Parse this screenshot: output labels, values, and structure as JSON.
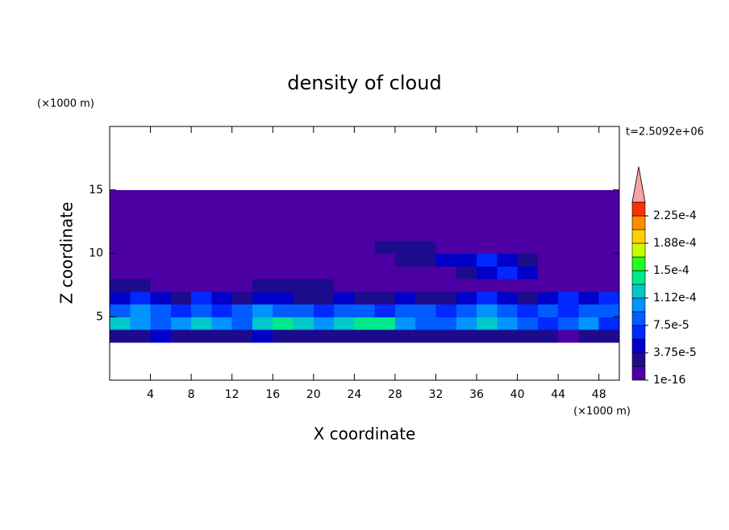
{
  "chart_data": {
    "type": "contour",
    "title": "density of cloud",
    "annotation": "t=2.5092e+06",
    "x_label": "X coordinate",
    "y_label": "Z coordinate",
    "x_unit": "(×1000 m)",
    "y_unit": "(×1000 m)",
    "xlim": [
      0,
      50
    ],
    "ylim": [
      0,
      20
    ],
    "xticks": [
      4,
      8,
      12,
      16,
      20,
      24,
      28,
      32,
      36,
      40,
      44,
      48
    ],
    "yticks": [
      5,
      10,
      15
    ],
    "field": {
      "x": [
        1,
        3,
        5,
        7,
        9,
        11,
        13,
        15,
        17,
        19,
        21,
        23,
        25,
        27,
        29,
        31,
        33,
        35,
        37,
        39,
        41,
        43,
        45,
        47,
        49
      ],
      "z": [
        3.5,
        4.5,
        5.5,
        6.5,
        7.5,
        8.5,
        9.5,
        10.5,
        11.5,
        12.5,
        13.5,
        14.5
      ],
      "values": [
        [
          2.5e-05,
          2.5e-05,
          4.5e-05,
          2.5e-05,
          2.5e-05,
          2.5e-05,
          2.5e-05,
          4.5e-05,
          2.5e-05,
          2.5e-05,
          2.5e-05,
          2.5e-05,
          2.5e-05,
          2.5e-05,
          2.5e-05,
          2.5e-05,
          2.5e-05,
          2.5e-05,
          2.5e-05,
          2.5e-05,
          2.5e-05,
          2.5e-05,
          5e-06,
          2.5e-05,
          2.5e-05
        ],
        [
          0.00012,
          0.0001,
          8e-05,
          0.0001,
          0.00012,
          0.0001,
          8e-05,
          0.00012,
          0.00014,
          0.00012,
          0.0001,
          0.00012,
          0.00014,
          0.00014,
          0.0001,
          8e-05,
          8e-05,
          0.0001,
          0.00012,
          0.0001,
          8e-05,
          6e-05,
          8e-05,
          0.0001,
          6e-05
        ],
        [
          8e-05,
          0.0001,
          8e-05,
          6e-05,
          8e-05,
          6e-05,
          8e-05,
          0.0001,
          8e-05,
          8e-05,
          6e-05,
          8e-05,
          8e-05,
          6e-05,
          8e-05,
          8e-05,
          6e-05,
          8e-05,
          0.0001,
          8e-05,
          6e-05,
          8e-05,
          6e-05,
          8e-05,
          8e-05
        ],
        [
          4.5e-05,
          6e-05,
          4.5e-05,
          2.5e-05,
          6e-05,
          4.5e-05,
          2.5e-05,
          4.5e-05,
          4.5e-05,
          2.5e-05,
          2.5e-05,
          4.5e-05,
          2.5e-05,
          2.5e-05,
          4.5e-05,
          2.5e-05,
          2.5e-05,
          4.5e-05,
          6e-05,
          4.5e-05,
          2.5e-05,
          4.5e-05,
          6e-05,
          4.5e-05,
          6e-05
        ],
        [
          2.5e-05,
          2.5e-05,
          5e-06,
          5e-06,
          5e-06,
          5e-06,
          5e-06,
          2.5e-05,
          2.5e-05,
          2.5e-05,
          2.5e-05,
          5e-06,
          5e-06,
          5e-06,
          5e-06,
          5e-06,
          5e-06,
          5e-06,
          5e-06,
          5e-06,
          5e-06,
          5e-06,
          5e-06,
          5e-06,
          5e-06
        ],
        [
          5e-06,
          5e-06,
          5e-06,
          5e-06,
          5e-06,
          5e-06,
          5e-06,
          5e-06,
          5e-06,
          5e-06,
          5e-06,
          5e-06,
          5e-06,
          5e-06,
          5e-06,
          5e-06,
          5e-06,
          2.5e-05,
          4.5e-05,
          6e-05,
          4.5e-05,
          5e-06,
          5e-06,
          5e-06,
          5e-06
        ],
        [
          5e-06,
          5e-06,
          5e-06,
          5e-06,
          5e-06,
          5e-06,
          5e-06,
          5e-06,
          5e-06,
          5e-06,
          5e-06,
          5e-06,
          5e-06,
          5e-06,
          2.5e-05,
          2.5e-05,
          4.5e-05,
          4.5e-05,
          6e-05,
          4.5e-05,
          2.5e-05,
          5e-06,
          5e-06,
          5e-06,
          5e-06
        ],
        [
          5e-06,
          5e-06,
          5e-06,
          5e-06,
          5e-06,
          5e-06,
          5e-06,
          5e-06,
          5e-06,
          5e-06,
          5e-06,
          5e-06,
          5e-06,
          2.5e-05,
          2.5e-05,
          2.5e-05,
          5e-06,
          5e-06,
          5e-06,
          5e-06,
          5e-06,
          5e-06,
          5e-06,
          5e-06,
          5e-06
        ],
        [
          5e-06,
          5e-06,
          5e-06,
          5e-06,
          5e-06,
          5e-06,
          5e-06,
          5e-06,
          5e-06,
          5e-06,
          5e-06,
          5e-06,
          5e-06,
          5e-06,
          5e-06,
          5e-06,
          5e-06,
          5e-06,
          5e-06,
          5e-06,
          5e-06,
          5e-06,
          5e-06,
          5e-06,
          5e-06
        ],
        [
          5e-06,
          5e-06,
          5e-06,
          5e-06,
          5e-06,
          5e-06,
          5e-06,
          5e-06,
          5e-06,
          5e-06,
          5e-06,
          5e-06,
          5e-06,
          5e-06,
          5e-06,
          5e-06,
          5e-06,
          5e-06,
          5e-06,
          5e-06,
          5e-06,
          5e-06,
          5e-06,
          5e-06,
          5e-06
        ],
        [
          5e-06,
          5e-06,
          5e-06,
          5e-06,
          5e-06,
          5e-06,
          5e-06,
          5e-06,
          5e-06,
          5e-06,
          5e-06,
          5e-06,
          5e-06,
          5e-06,
          5e-06,
          5e-06,
          5e-06,
          5e-06,
          5e-06,
          5e-06,
          5e-06,
          5e-06,
          5e-06,
          5e-06,
          5e-06
        ],
        [
          5e-06,
          5e-06,
          5e-06,
          5e-06,
          5e-06,
          5e-06,
          5e-06,
          5e-06,
          5e-06,
          5e-06,
          5e-06,
          5e-06,
          5e-06,
          5e-06,
          5e-06,
          5e-06,
          5e-06,
          5e-06,
          5e-06,
          5e-06,
          5e-06,
          5e-06,
          5e-06,
          5e-06,
          5e-06
        ]
      ]
    },
    "colorbar": {
      "levels": [
        1e-16,
        1.875e-05,
        3.75e-05,
        5.625e-05,
        7.5e-05,
        9.375e-05,
        0.0001125,
        0.00013125,
        0.00015,
        0.00016875,
        0.0001875,
        0.00020625,
        0.000225,
        0.00024375
      ],
      "colors": [
        "#4c00a4",
        "#1c0c8c",
        "#0000c8",
        "#0028ff",
        "#005cff",
        "#0094ff",
        "#00c8c8",
        "#00e88c",
        "#20ff20",
        "#c8ff00",
        "#ffd000",
        "#ff8c00",
        "#ff3000"
      ],
      "over_color": "#f4a4a4",
      "ticks": [
        {
          "value": 1e-16,
          "label": "1e-16"
        },
        {
          "value": 3.75e-05,
          "label": "3.75e-5"
        },
        {
          "value": 7.5e-05,
          "label": "7.5e-5"
        },
        {
          "value": 0.0001125,
          "label": "1.12e-4"
        },
        {
          "value": 0.00015,
          "label": "1.5e-4"
        },
        {
          "value": 0.0001875,
          "label": "1.88e-4"
        },
        {
          "value": 0.000225,
          "label": "2.25e-4"
        }
      ]
    }
  }
}
